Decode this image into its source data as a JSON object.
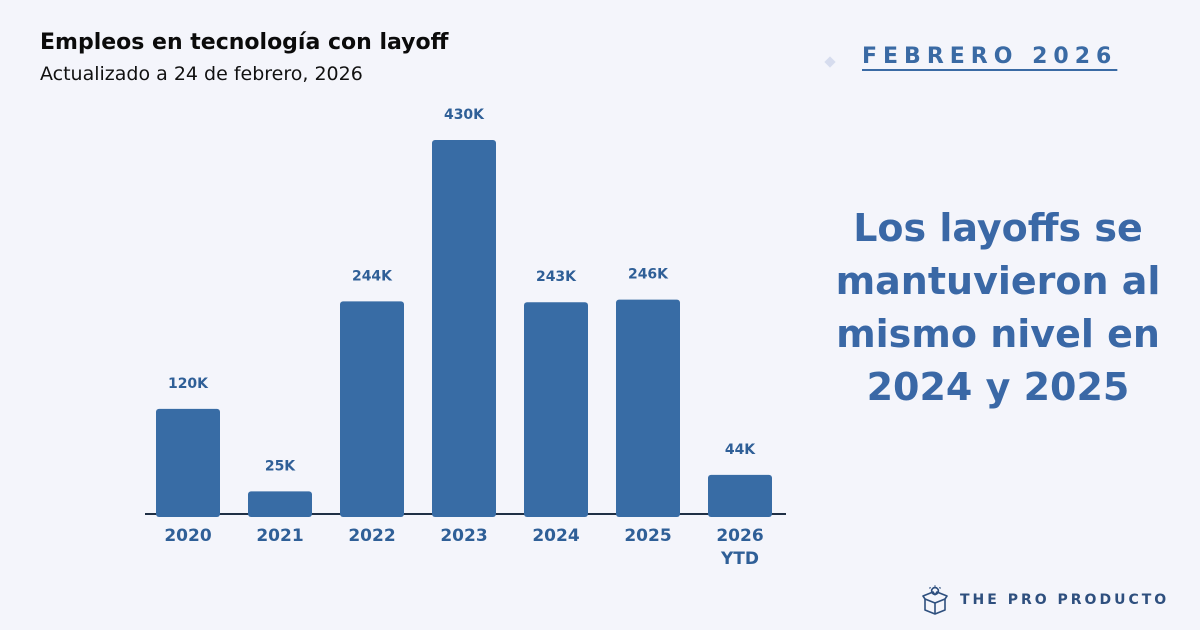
{
  "header": {
    "title": "Empleos en tecnología con layoff",
    "subtitle": "Actualizado a 24 de febrero, 2026",
    "date_tag": "FEBRERO 2026"
  },
  "headline": "Los layoffs se mantuvieron al mismo nivel en 2024 y 2025",
  "brand": {
    "name": "THE PRO PRODUCTO",
    "icon": "lightbulb-box-icon"
  },
  "colors": {
    "bar": "#386ca5",
    "labels": "#2f5f97",
    "headline": "#3a68a6",
    "background": "#f4f5fb"
  },
  "chart_data": {
    "type": "bar",
    "title": "Empleos en tecnología con layoff",
    "subtitle": "Actualizado a 24 de febrero, 2026",
    "categories": [
      "2020",
      "2021",
      "2022",
      "2023",
      "2024",
      "2025",
      "2026 YTD"
    ],
    "category_lines": [
      [
        "2020"
      ],
      [
        "2021"
      ],
      [
        "2022"
      ],
      [
        "2023"
      ],
      [
        "2024"
      ],
      [
        "2025"
      ],
      [
        "2026",
        "YTD"
      ]
    ],
    "values": [
      120,
      25,
      244,
      430,
      243,
      246,
      44
    ],
    "value_labels": [
      "120K",
      "25K",
      "244K",
      "430K",
      "243K",
      "246K",
      "44K"
    ],
    "unit": "K",
    "ylim": [
      0,
      430
    ],
    "grid": false,
    "legend": "none",
    "xlabel": "",
    "ylabel": ""
  }
}
